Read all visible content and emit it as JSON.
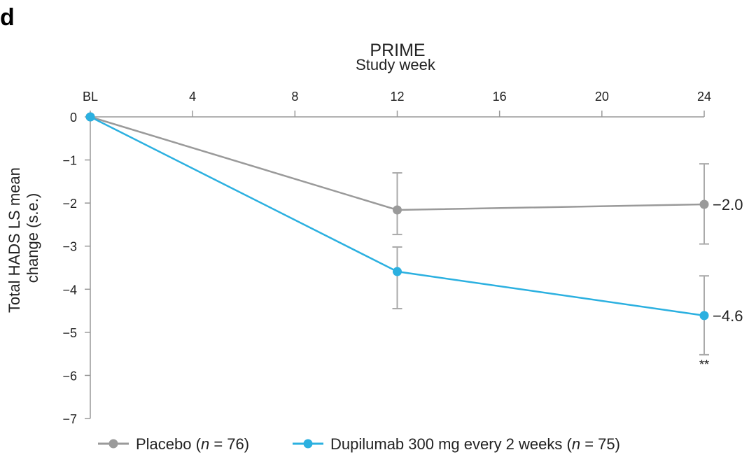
{
  "panel_label": "d",
  "chart_data": {
    "type": "line",
    "title": "PRIME",
    "xlabel": "Study week",
    "ylabel_lines": [
      "Total HADS LS mean",
      "change (s.e.)"
    ],
    "x": [
      0,
      12,
      24
    ],
    "x_ticks": [
      0,
      4,
      8,
      12,
      16,
      20,
      24
    ],
    "x_tick_labels": [
      "BL",
      "4",
      "8",
      "12",
      "16",
      "20",
      "24"
    ],
    "xlim": [
      0,
      24
    ],
    "ylim": [
      -7,
      0
    ],
    "y_ticks": [
      0,
      -1,
      -2,
      -3,
      -4,
      -5,
      -6,
      -7
    ],
    "y_tick_labels": [
      "0",
      "−1",
      "−2",
      "−3",
      "−4",
      "−5",
      "−6",
      "−7"
    ],
    "x_axis_position": "top",
    "grid": false,
    "legend_position": "bottom",
    "series": [
      {
        "name": "Placebo",
        "legend_label": "Placebo (",
        "n_label": "n",
        "n_value": " = 76)",
        "color": "#9a9a9a",
        "values": [
          0,
          -2.16,
          -2.03
        ],
        "se_low": [
          0,
          -2.73,
          -2.95
        ],
        "se_high": [
          0,
          -1.3,
          -1.09
        ],
        "end_label": "−2.0"
      },
      {
        "name": "Dupilumab 300 mg every 2 weeks",
        "legend_label": "Dupilumab 300 mg every 2 weeks (",
        "n_label": "n",
        "n_value": " = 75)",
        "color": "#2bb0e0",
        "values": [
          0,
          -3.59,
          -4.61
        ],
        "se_low": [
          0,
          -4.45,
          -5.52
        ],
        "se_high": [
          0,
          -3.02,
          -3.69
        ],
        "end_label": "−4.6"
      }
    ],
    "annotations": [
      {
        "text": "**",
        "x": 24,
        "series": 1
      }
    ]
  }
}
